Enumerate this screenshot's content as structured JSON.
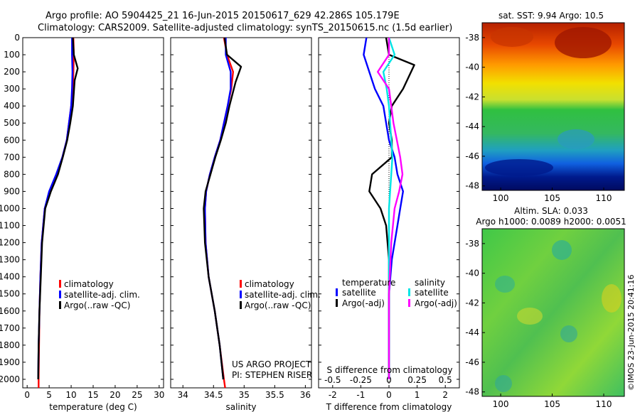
{
  "header": {
    "line1": "Argo profile: AO 5904425_21 16-Jun-2015 20150617_629 42.286S 105.179E",
    "line2": "Climatology: CARS2009. Satellite-adjusted climatology: synTS_20150615.nc (1.5d earlier)"
  },
  "colors": {
    "climatology": "#ff0000",
    "satellite": "#0000ff",
    "argo": "#000000",
    "satellite_sal": "#00e5e5",
    "argo_sal": "#ff00ff"
  },
  "depth_ticks": [
    "0",
    "100",
    "200",
    "300",
    "400",
    "500",
    "600",
    "700",
    "800",
    "900",
    "1000",
    "1100",
    "1200",
    "1300",
    "1400",
    "1500",
    "1600",
    "1700",
    "1800",
    "1900",
    "2000"
  ],
  "panels": {
    "temperature": {
      "xlabel": "temperature (deg C)",
      "xticks": [
        "0",
        "5",
        "10",
        "15",
        "20",
        "25",
        "30"
      ],
      "legend": [
        "climatology",
        "satellite-adj. clim.",
        "Argo(..raw -QC)"
      ]
    },
    "salinity": {
      "xlabel": "salinity",
      "xticks": [
        "34",
        "34.5",
        "35",
        "35.5",
        "36"
      ],
      "legend": [
        "climatology",
        "satellite-adj. clim.",
        "Argo(..raw -QC)"
      ],
      "credit1": "US ARGO PROJECT",
      "credit2": "PI: STEPHEN RISER"
    },
    "difference": {
      "xlabel": "T difference from climatology",
      "top_label": "S difference from climatology",
      "xticks": [
        "-2",
        "-1",
        "0",
        "1",
        "2"
      ],
      "sticks": [
        "-0.5",
        "-0.25",
        "0",
        "0.25",
        "0.5"
      ],
      "legend_temp_title": "temperature",
      "legend_sal_title": "salinity",
      "legend_temp": [
        "satellite",
        "Argo(-adj)"
      ],
      "legend_sal": [
        "satellite",
        "Argo(-adj)"
      ]
    },
    "sst_map": {
      "title": "sat. SST: 9.94  Argo: 10.5",
      "yticks": [
        "-38",
        "-40",
        "-42",
        "-44",
        "-46",
        "-48"
      ],
      "xticks": [
        "100",
        "105",
        "110"
      ]
    },
    "sla_map": {
      "title1": "Altim. SLA: 0.033",
      "title2": "Argo h1000: 0.0089 h2000: 0.0051",
      "yticks": [
        "-38",
        "-40",
        "-42",
        "-44",
        "-46",
        "-48"
      ],
      "xticks": [
        "100",
        "105",
        "110"
      ]
    },
    "stamp": "©IMOS 23-Jun-2015 20:41:16"
  },
  "chart_data": [
    {
      "type": "line",
      "xlabel": "temperature (deg C)",
      "xlim": [
        -1,
        31
      ],
      "ylim": [
        2050,
        0
      ],
      "series": [
        {
          "name": "climatology",
          "x": [
            10.5,
            10.6,
            10.5,
            10.4,
            10.0,
            9.5,
            9.0,
            8.0,
            6.7,
            5.2,
            4.0,
            3.3,
            3.0,
            2.8,
            2.7,
            2.6,
            2.6
          ],
          "y": [
            0,
            100,
            200,
            300,
            400,
            500,
            600,
            700,
            800,
            900,
            1000,
            1200,
            1400,
            1600,
            1800,
            2000,
            2050
          ]
        },
        {
          "name": "satellite-adj. clim.",
          "x": [
            10.2,
            10.2,
            10.3,
            10.2,
            10.0,
            9.5,
            9.0,
            8.0,
            6.6,
            5.0,
            4.0,
            3.3,
            3.0,
            2.8,
            2.6,
            2.5
          ],
          "y": [
            0,
            100,
            200,
            300,
            400,
            500,
            600,
            700,
            800,
            900,
            1000,
            1200,
            1400,
            1600,
            1800,
            2000
          ]
        },
        {
          "name": "Argo(..raw -QC)",
          "x": [
            10.4,
            10.6,
            11.5,
            10.8,
            10.4,
            9.8,
            9.1,
            8.1,
            7.0,
            5.4,
            4.1,
            3.4,
            3.1,
            2.8,
            2.6,
            2.5
          ],
          "y": [
            0,
            100,
            180,
            250,
            400,
            500,
            600,
            700,
            800,
            900,
            1000,
            1200,
            1400,
            1600,
            1800,
            2000
          ]
        }
      ]
    },
    {
      "type": "line",
      "xlabel": "salinity",
      "xlim": [
        33.8,
        36.1
      ],
      "ylim": [
        2050,
        0
      ],
      "series": [
        {
          "name": "climatology",
          "x": [
            34.67,
            34.72,
            34.82,
            34.79,
            34.73,
            34.67,
            34.61,
            34.52,
            34.44,
            34.38,
            34.36,
            34.37,
            34.42,
            34.52,
            34.6,
            34.67,
            34.69
          ],
          "y": [
            0,
            100,
            200,
            300,
            400,
            500,
            600,
            700,
            800,
            900,
            1000,
            1200,
            1400,
            1600,
            1800,
            2000,
            2050
          ]
        },
        {
          "name": "satellite-adj. clim.",
          "x": [
            34.7,
            34.7,
            34.78,
            34.78,
            34.73,
            34.67,
            34.61,
            34.52,
            34.44,
            34.38,
            34.36,
            34.37,
            34.42,
            34.52,
            34.6,
            34.66
          ],
          "y": [
            0,
            100,
            200,
            300,
            400,
            500,
            600,
            700,
            800,
            900,
            1000,
            1200,
            1400,
            1600,
            1800,
            2000
          ]
        },
        {
          "name": "Argo(..raw -QC)",
          "x": [
            34.68,
            34.72,
            34.95,
            34.86,
            34.76,
            34.7,
            34.62,
            34.53,
            34.45,
            34.37,
            34.34,
            34.36,
            34.42,
            34.52,
            34.6,
            34.66
          ],
          "y": [
            0,
            100,
            170,
            260,
            400,
            500,
            600,
            700,
            800,
            900,
            1000,
            1200,
            1400,
            1600,
            1800,
            2000
          ]
        }
      ]
    },
    {
      "type": "line",
      "xlabel": "T difference from climatology",
      "xlim": [
        -2.5,
        2.5
      ],
      "ylim": [
        2050,
        0
      ],
      "series": [
        {
          "name": "temperature satellite",
          "x": [
            -0.8,
            -0.9,
            -0.7,
            -0.5,
            -0.2,
            -0.1,
            0.0,
            0.2,
            0.3,
            0.5,
            0.4,
            0.3,
            0.1,
            0.0,
            0.0,
            0.0
          ],
          "y": [
            0,
            100,
            200,
            300,
            400,
            500,
            600,
            700,
            800,
            900,
            1000,
            1100,
            1300,
            1500,
            1800,
            2000
          ]
        },
        {
          "name": "temperature Argo(-adj)",
          "x": [
            -0.1,
            0.0,
            0.9,
            0.5,
            0.1,
            0.0,
            0.1,
            0.1,
            -0.6,
            -0.7,
            -0.3,
            -0.1,
            0.0,
            0.0,
            0.0,
            0.0
          ],
          "y": [
            0,
            100,
            160,
            300,
            400,
            500,
            600,
            700,
            800,
            900,
            1000,
            1100,
            1300,
            1500,
            1800,
            2000
          ]
        },
        {
          "name": "salinity satellite",
          "x": [
            0.0,
            0.05,
            -0.05,
            -0.02,
            0.0,
            0.01,
            0.02,
            0.03,
            0.02,
            0.0,
            0.0,
            0.0,
            0.0,
            0.0
          ],
          "y": [
            0,
            100,
            200,
            300,
            400,
            500,
            600,
            700,
            800,
            1000,
            1200,
            1500,
            1800,
            2000
          ]
        },
        {
          "name": "salinity Argo(-adj)",
          "x": [
            0.0,
            0.0,
            -0.1,
            0.0,
            0.02,
            0.04,
            0.07,
            0.1,
            0.12,
            0.09,
            0.05,
            0.02,
            0.0,
            0.0
          ],
          "y": [
            0,
            100,
            200,
            300,
            400,
            500,
            600,
            700,
            800,
            900,
            1000,
            1200,
            1500,
            2000
          ]
        }
      ]
    }
  ]
}
